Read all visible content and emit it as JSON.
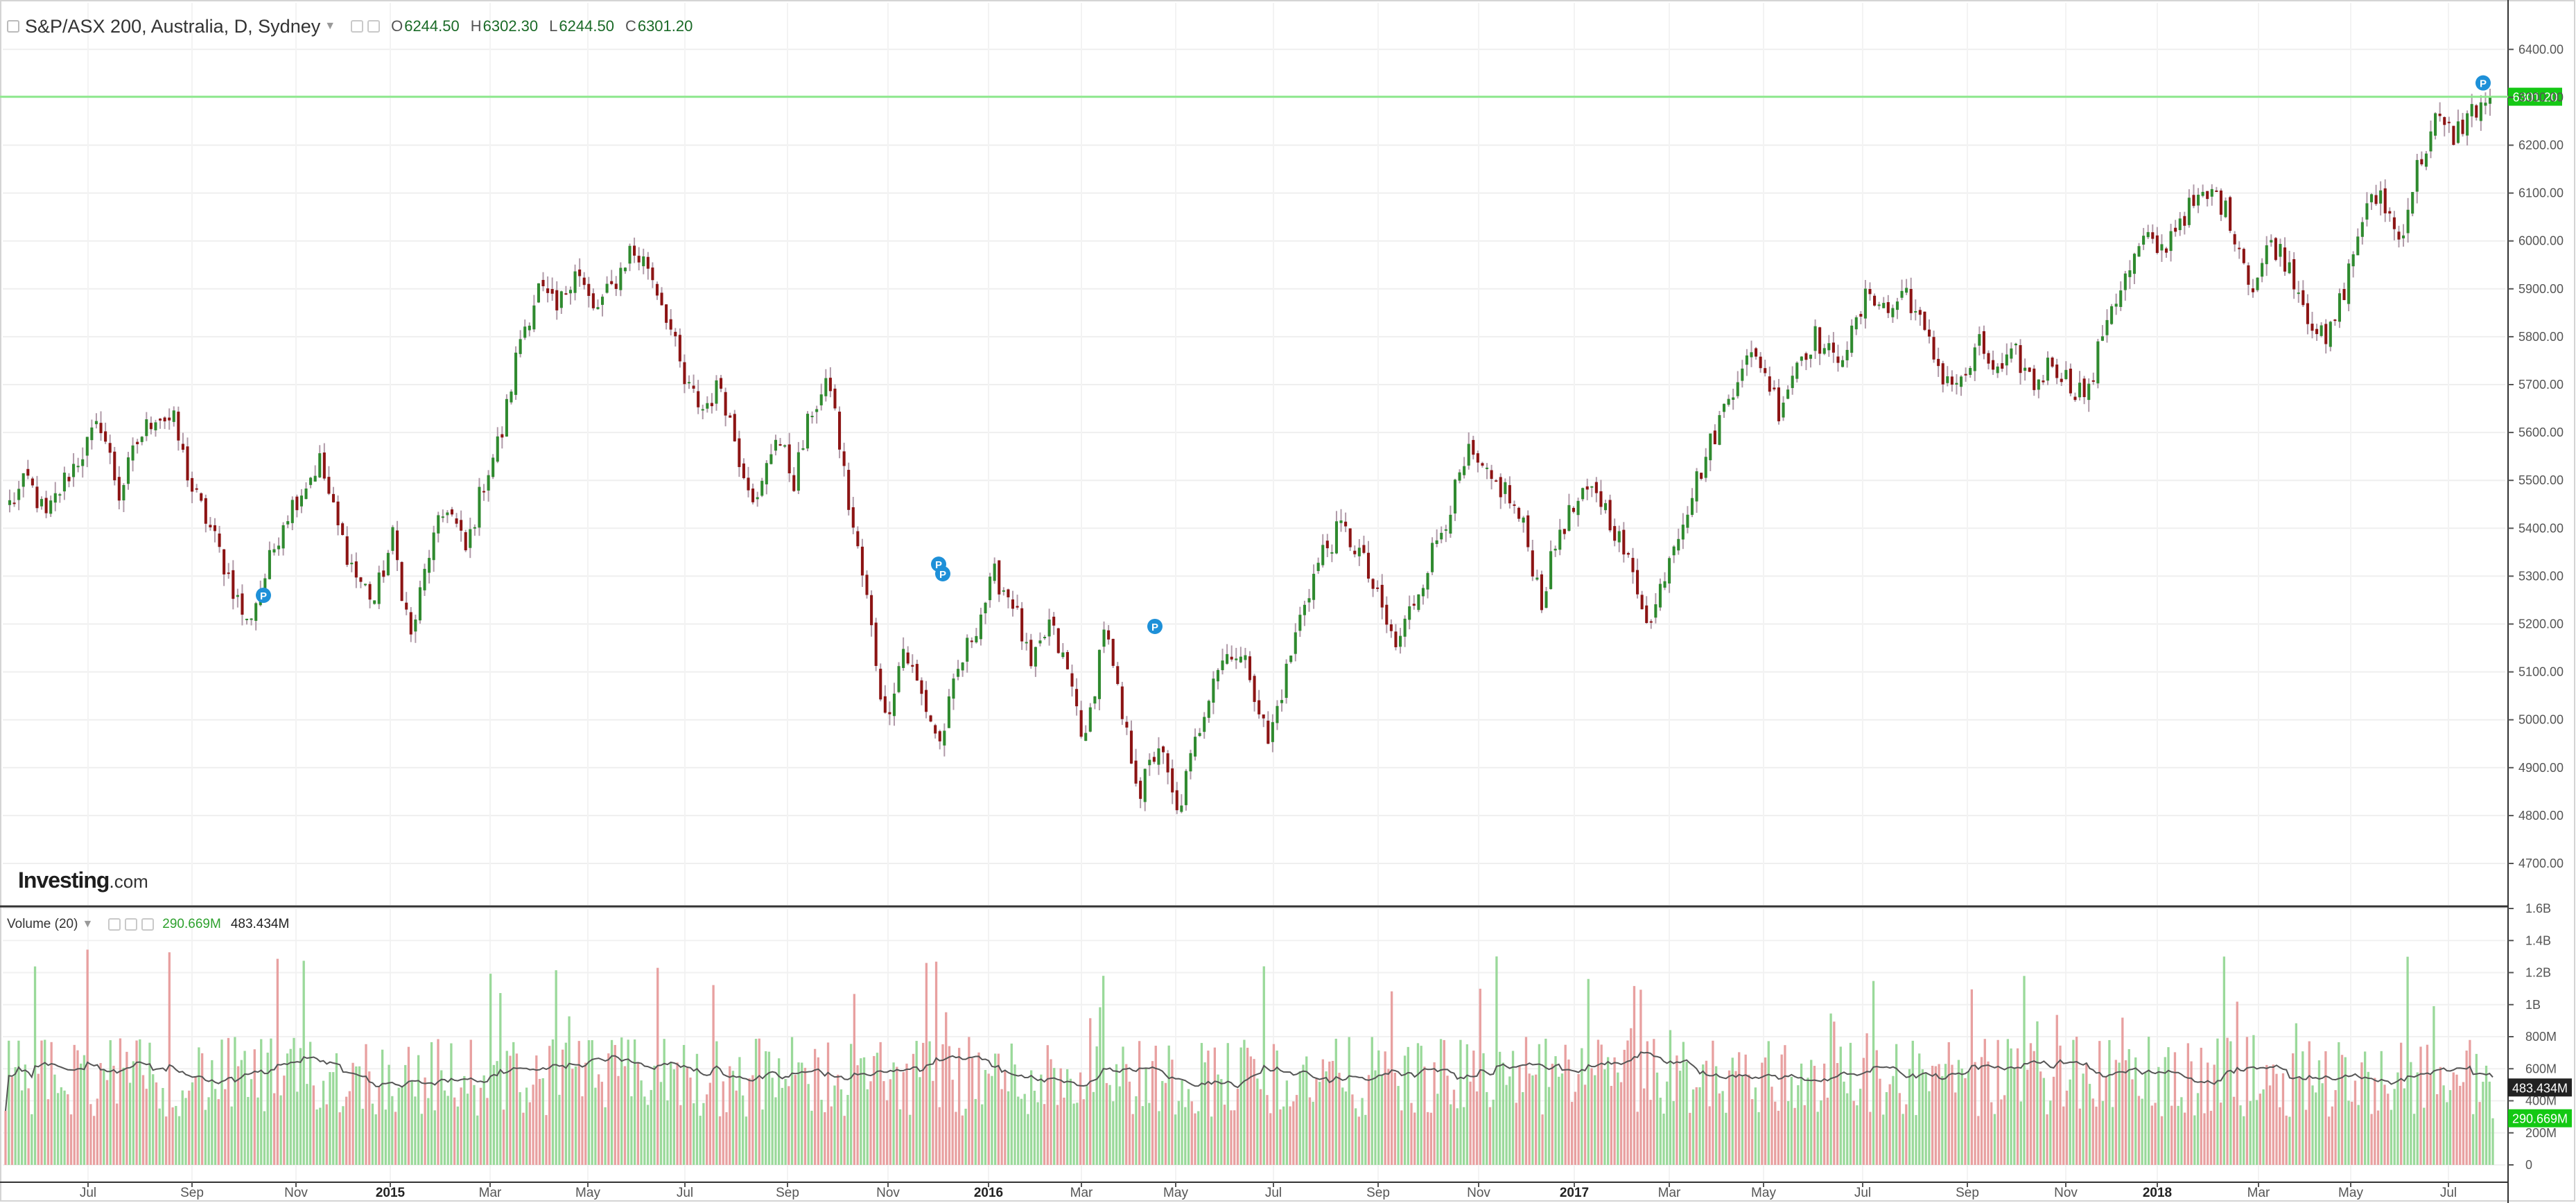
{
  "header": {
    "symbol": "S&P/ASX 200, Australia, D, Sydney",
    "open_label": "O",
    "open": "6244.50",
    "high_label": "H",
    "high": "6302.30",
    "low_label": "L",
    "low": "6244.50",
    "close_label": "C",
    "close": "6301.20"
  },
  "volume_header": {
    "label": "Volume (20)",
    "volume_value": "290.669M",
    "ma_value": "483.434M"
  },
  "logo": {
    "brand": "Investing",
    "suffix": ".com"
  },
  "icons": [
    "chart-toggle-icon",
    "caret-down-icon",
    "settings-icon",
    "eye-icon",
    "close-icon",
    "pivot-marker-icon"
  ],
  "colors": {
    "up": "#2f8a2f",
    "down": "#8c1414",
    "wick": "#b09aa8",
    "vol_up": "#9ad99a",
    "vol_down": "#e8a0a0",
    "vol_ma": "#555555",
    "last_price": "#14c814",
    "last_line": "#8fe88f",
    "ma_badge": "#222222",
    "marker": "#1e90d8"
  },
  "chart_data": [
    {
      "type": "candlestick",
      "title": "S&P/ASX 200, Australia, D, Sydney",
      "x_ticks": [
        "Jul",
        "Sep",
        "Nov",
        "2015",
        "Mar",
        "May",
        "Jul",
        "Sep",
        "Nov",
        "2016",
        "Mar",
        "May",
        "Jul",
        "Sep",
        "Nov",
        "2017",
        "Mar",
        "May",
        "Jul",
        "Sep",
        "Nov",
        "2018",
        "Mar",
        "May",
        "Jul"
      ],
      "y_ticks": [
        "4700.00",
        "4800.00",
        "4900.00",
        "5000.00",
        "5100.00",
        "5200.00",
        "5300.00",
        "5400.00",
        "5500.00",
        "5600.00",
        "5700.00",
        "5800.00",
        "5900.00",
        "6000.00",
        "6100.00",
        "6200.00",
        "6300.00",
        "6400.00"
      ],
      "ylim": [
        4640,
        6450
      ],
      "last_price": 6301.2,
      "last_price_label": "6301.20",
      "marker_label": "P",
      "series": [
        {
          "date": "2014-06",
          "close": 5450
        },
        {
          "date": "2014-06",
          "close": 5500
        },
        {
          "date": "2014-07",
          "close": 5420
        },
        {
          "date": "2014-07",
          "close": 5500
        },
        {
          "date": "2014-07",
          "close": 5560
        },
        {
          "date": "2014-07",
          "close": 5620
        },
        {
          "date": "2014-08",
          "close": 5470
        },
        {
          "date": "2014-08",
          "close": 5580
        },
        {
          "date": "2014-08",
          "close": 5640
        },
        {
          "date": "2014-09",
          "close": 5620
        },
        {
          "date": "2014-09",
          "close": 5480
        },
        {
          "date": "2014-09",
          "close": 5400
        },
        {
          "date": "2014-10",
          "close": 5300
        },
        {
          "date": "2014-10",
          "close": 5200
        },
        {
          "date": "2014-10",
          "close": 5300
        },
        {
          "date": "2014-10",
          "close": 5420
        },
        {
          "date": "2014-11",
          "close": 5480
        },
        {
          "date": "2014-11",
          "close": 5540
        },
        {
          "date": "2014-11",
          "close": 5400
        },
        {
          "date": "2014-11",
          "close": 5300
        },
        {
          "date": "2014-12",
          "close": 5250
        },
        {
          "date": "2014-12",
          "close": 5380
        },
        {
          "date": "2014-12",
          "close": 5170
        },
        {
          "date": "2014-12",
          "close": 5350
        },
        {
          "date": "2015-01",
          "close": 5450
        },
        {
          "date": "2015-01",
          "close": 5350
        },
        {
          "date": "2015-01",
          "close": 5500
        },
        {
          "date": "2015-01",
          "close": 5600
        },
        {
          "date": "2015-02",
          "close": 5800
        },
        {
          "date": "2015-02",
          "close": 5900
        },
        {
          "date": "2015-02",
          "close": 5850
        },
        {
          "date": "2015-03",
          "close": 5950
        },
        {
          "date": "2015-03",
          "close": 5850
        },
        {
          "date": "2015-03",
          "close": 5900
        },
        {
          "date": "2015-04",
          "close": 5980
        },
        {
          "date": "2015-04",
          "close": 5950
        },
        {
          "date": "2015-04",
          "close": 5850
        },
        {
          "date": "2015-05",
          "close": 5700
        },
        {
          "date": "2015-05",
          "close": 5650
        },
        {
          "date": "2015-05",
          "close": 5700
        },
        {
          "date": "2015-06",
          "close": 5550
        },
        {
          "date": "2015-06",
          "close": 5450
        },
        {
          "date": "2015-06",
          "close": 5600
        },
        {
          "date": "2015-07",
          "close": 5500
        },
        {
          "date": "2015-07",
          "close": 5650
        },
        {
          "date": "2015-07",
          "close": 5700
        },
        {
          "date": "2015-08",
          "close": 5450
        },
        {
          "date": "2015-08",
          "close": 5250
        },
        {
          "date": "2015-08",
          "close": 5000
        },
        {
          "date": "2015-09",
          "close": 5150
        },
        {
          "date": "2015-09",
          "close": 5050
        },
        {
          "date": "2015-09",
          "close": 4950
        },
        {
          "date": "2015-10",
          "close": 5100
        },
        {
          "date": "2015-10",
          "close": 5200
        },
        {
          "date": "2015-10",
          "close": 5300
        },
        {
          "date": "2015-11",
          "close": 5250
        },
        {
          "date": "2015-11",
          "close": 5100
        },
        {
          "date": "2015-11",
          "close": 5200
        },
        {
          "date": "2015-12",
          "close": 5100
        },
        {
          "date": "2015-12",
          "close": 4950
        },
        {
          "date": "2015-12",
          "close": 5200
        },
        {
          "date": "2016-01",
          "close": 5000
        },
        {
          "date": "2016-01",
          "close": 4850
        },
        {
          "date": "2016-01",
          "close": 4950
        },
        {
          "date": "2016-02",
          "close": 4800
        },
        {
          "date": "2016-02",
          "close": 4950
        },
        {
          "date": "2016-02",
          "close": 5100
        },
        {
          "date": "2016-03",
          "close": 5150
        },
        {
          "date": "2016-03",
          "close": 5100
        },
        {
          "date": "2016-04",
          "close": 4950
        },
        {
          "date": "2016-04",
          "close": 5100
        },
        {
          "date": "2016-04",
          "close": 5250
        },
        {
          "date": "2016-05",
          "close": 5350
        },
        {
          "date": "2016-05",
          "close": 5400
        },
        {
          "date": "2016-05",
          "close": 5350
        },
        {
          "date": "2016-06",
          "close": 5250
        },
        {
          "date": "2016-06",
          "close": 5150
        },
        {
          "date": "2016-06",
          "close": 5250
        },
        {
          "date": "2016-07",
          "close": 5350
        },
        {
          "date": "2016-07",
          "close": 5450
        },
        {
          "date": "2016-07",
          "close": 5550
        },
        {
          "date": "2016-08",
          "close": 5500
        },
        {
          "date": "2016-08",
          "close": 5480
        },
        {
          "date": "2016-08",
          "close": 5400
        },
        {
          "date": "2016-09",
          "close": 5250
        },
        {
          "date": "2016-09",
          "close": 5400
        },
        {
          "date": "2016-09",
          "close": 5450
        },
        {
          "date": "2016-10",
          "close": 5480
        },
        {
          "date": "2016-10",
          "close": 5400
        },
        {
          "date": "2016-10",
          "close": 5300
        },
        {
          "date": "2016-11",
          "close": 5200
        },
        {
          "date": "2016-11",
          "close": 5350
        },
        {
          "date": "2016-11",
          "close": 5450
        },
        {
          "date": "2016-12",
          "close": 5550
        },
        {
          "date": "2016-12",
          "close": 5650
        },
        {
          "date": "2016-12",
          "close": 5750
        },
        {
          "date": "2017-01",
          "close": 5750
        },
        {
          "date": "2017-01",
          "close": 5650
        },
        {
          "date": "2017-02",
          "close": 5750
        },
        {
          "date": "2017-02",
          "close": 5800
        },
        {
          "date": "2017-03",
          "close": 5750
        },
        {
          "date": "2017-03",
          "close": 5800
        },
        {
          "date": "2017-04",
          "close": 5900
        },
        {
          "date": "2017-04",
          "close": 5850
        },
        {
          "date": "2017-05",
          "close": 5900
        },
        {
          "date": "2017-05",
          "close": 5800
        },
        {
          "date": "2017-05",
          "close": 5720
        },
        {
          "date": "2017-06",
          "close": 5700
        },
        {
          "date": "2017-06",
          "close": 5780
        },
        {
          "date": "2017-07",
          "close": 5720
        },
        {
          "date": "2017-07",
          "close": 5760
        },
        {
          "date": "2017-08",
          "close": 5700
        },
        {
          "date": "2017-08",
          "close": 5750
        },
        {
          "date": "2017-09",
          "close": 5700
        },
        {
          "date": "2017-09",
          "close": 5680
        },
        {
          "date": "2017-10",
          "close": 5850
        },
        {
          "date": "2017-10",
          "close": 5920
        },
        {
          "date": "2017-11",
          "close": 6000
        },
        {
          "date": "2017-11",
          "close": 5980
        },
        {
          "date": "2017-12",
          "close": 6050
        },
        {
          "date": "2017-12",
          "close": 6080
        },
        {
          "date": "2018-01",
          "close": 6100
        },
        {
          "date": "2018-01",
          "close": 6020
        },
        {
          "date": "2018-02",
          "close": 5900
        },
        {
          "date": "2018-02",
          "close": 6000
        },
        {
          "date": "2018-03",
          "close": 5950
        },
        {
          "date": "2018-03",
          "close": 5850
        },
        {
          "date": "2018-04",
          "close": 5780
        },
        {
          "date": "2018-04",
          "close": 5900
        },
        {
          "date": "2018-05",
          "close": 6050
        },
        {
          "date": "2018-05",
          "close": 6100
        },
        {
          "date": "2018-06",
          "close": 6000
        },
        {
          "date": "2018-06",
          "close": 6150
        },
        {
          "date": "2018-06",
          "close": 6250
        },
        {
          "date": "2018-07",
          "close": 6220
        },
        {
          "date": "2018-07",
          "close": 6270
        },
        {
          "date": "2018-07",
          "close": 6301.2
        }
      ]
    },
    {
      "type": "bar",
      "title": "Volume (20)",
      "y_ticks": [
        "0",
        "200M",
        "400M",
        "600M",
        "800M",
        "1B",
        "1.2B",
        "1.4B",
        "1.6B"
      ],
      "ylim": [
        0,
        1.6
      ],
      "y_unit": "billions",
      "current_volume": 0.291,
      "current_volume_label": "290.669M",
      "ma_label": "483.434M",
      "ma_value": 0.483,
      "typical_range": [
        0.3,
        0.8
      ]
    }
  ]
}
